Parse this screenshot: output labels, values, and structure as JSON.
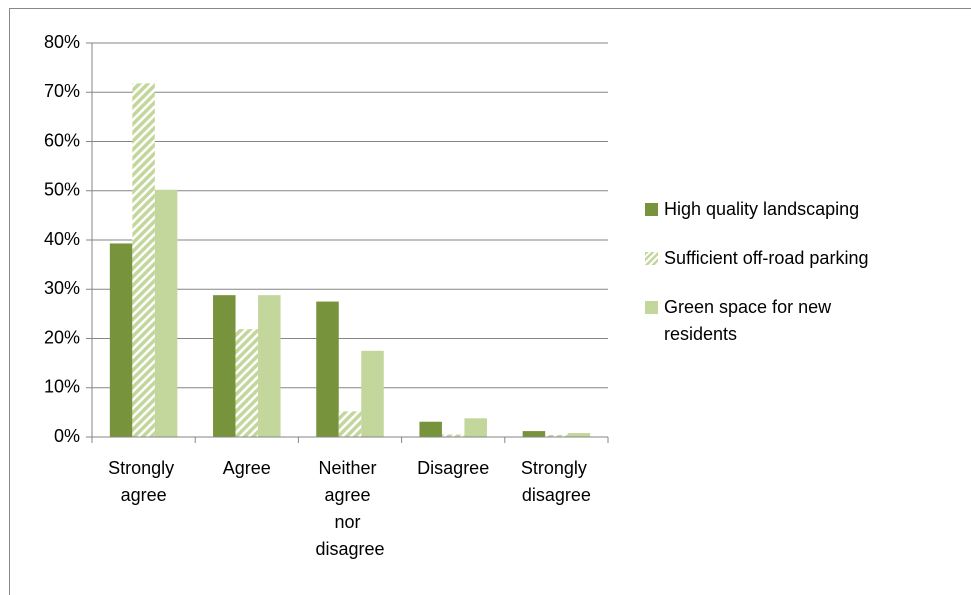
{
  "chart_data": {
    "type": "bar",
    "categories": [
      "Strongly agree",
      "Agree",
      "Neither agree nor disagree",
      "Disagree",
      "Strongly disagree"
    ],
    "series": [
      {
        "name": "High quality landscaping",
        "color": "#77933c",
        "values": [
          39.3,
          28.8,
          27.5,
          3.1,
          1.2
        ]
      },
      {
        "name": "Sufficient off-road parking",
        "color": "#c3d69b",
        "pattern": "hatch",
        "values": [
          71.8,
          21.9,
          5.2,
          0.5,
          0.4
        ]
      },
      {
        "name": "Green space for new residents",
        "color": "#c3d69b",
        "values": [
          50.2,
          28.8,
          17.5,
          3.8,
          0.8
        ]
      }
    ],
    "ylim": [
      0,
      80
    ],
    "yticks": [
      {
        "value": 0,
        "label": "0%"
      },
      {
        "value": 10,
        "label": "10%"
      },
      {
        "value": 20,
        "label": "20%"
      },
      {
        "value": 30,
        "label": "30%"
      },
      {
        "value": 40,
        "label": "40%"
      },
      {
        "value": 50,
        "label": "50%"
      },
      {
        "value": 60,
        "label": "60%"
      },
      {
        "value": 70,
        "label": "70%"
      },
      {
        "value": 80,
        "label": "80%"
      }
    ],
    "grid": true,
    "legend": "right"
  }
}
